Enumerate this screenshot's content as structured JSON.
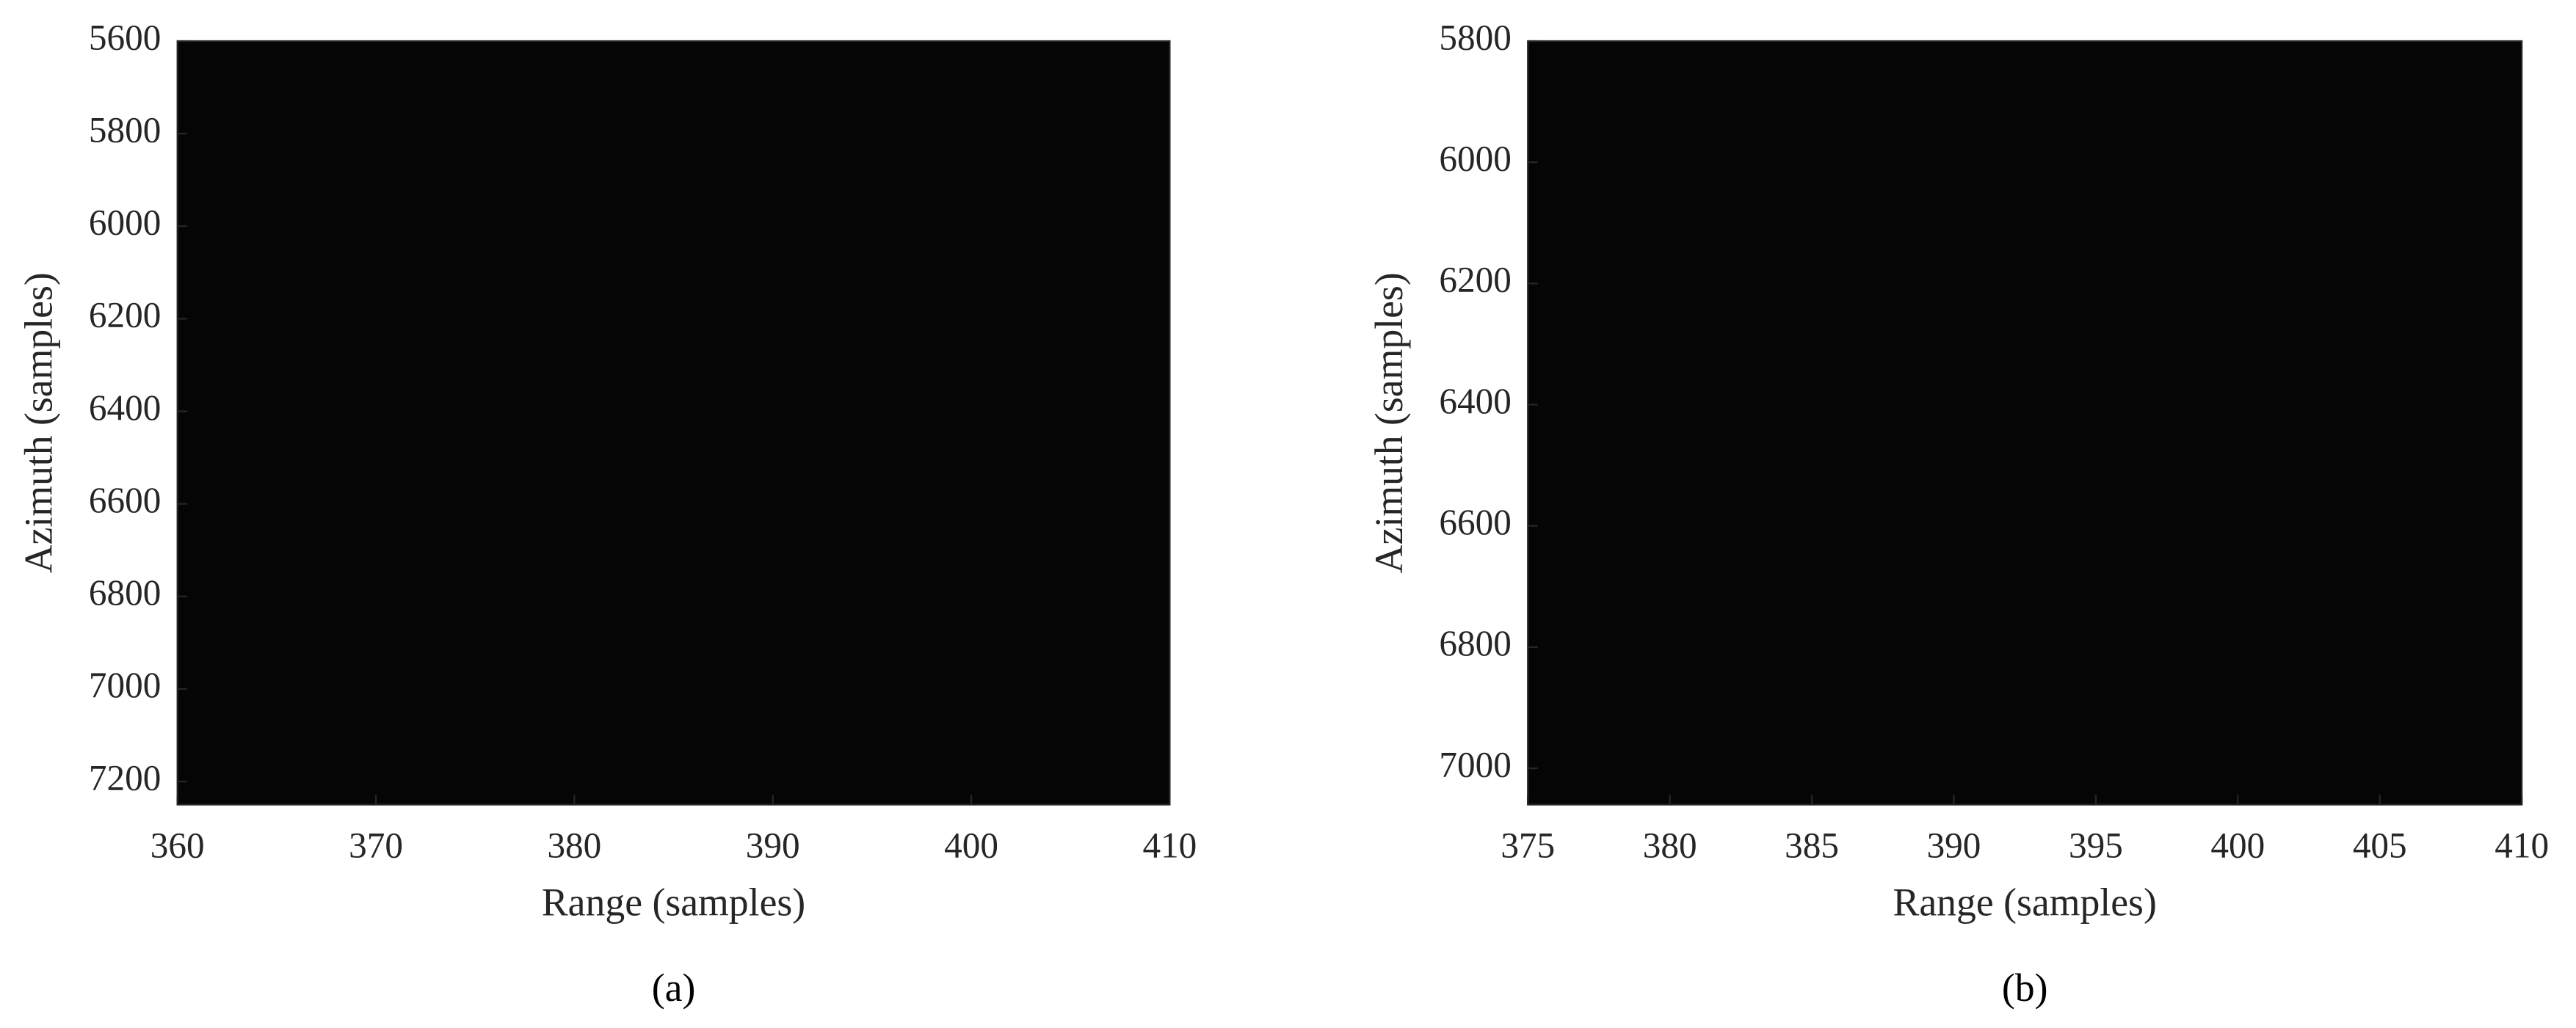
{
  "chart_data": [
    {
      "type": "heatmap",
      "caption": "(a)",
      "x_label": "Range (samples)",
      "y_label": "Azimuth (samples)",
      "xlim": [
        360,
        410
      ],
      "xticks": [
        360,
        370,
        380,
        390,
        400,
        410
      ],
      "ylim": [
        5600,
        7250
      ],
      "yticks": [
        5600,
        5800,
        6000,
        6200,
        6400,
        6600,
        6800,
        7000,
        7200
      ],
      "y_reversed": true
    },
    {
      "type": "heatmap",
      "caption": "(b)",
      "x_label": "Range (samples)",
      "y_label": "Azimuth (samples)",
      "xlim": [
        375,
        410
      ],
      "xticks": [
        375,
        380,
        385,
        390,
        395,
        400,
        405,
        410
      ],
      "ylim": [
        5800,
        7060
      ],
      "yticks": [
        5800,
        6000,
        6200,
        6400,
        6600,
        6800,
        7000
      ],
      "y_reversed": true
    }
  ]
}
